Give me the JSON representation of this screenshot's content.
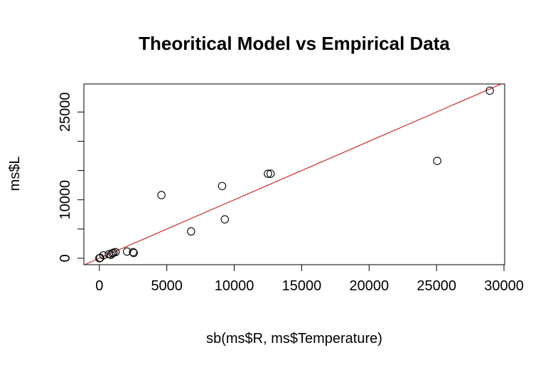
{
  "chart_data": {
    "type": "scatter",
    "title": "Theoritical Model vs Empirical Data",
    "xlabel": "sb(ms$R, ms$Temperature)",
    "ylabel": "ms$L",
    "xlim": [
      -1150,
      30050
    ],
    "ylim": [
      -1100,
      29800
    ],
    "x_ticks": [
      0,
      5000,
      10000,
      15000,
      20000,
      25000,
      30000
    ],
    "y_ticks": [
      0,
      5000,
      10000,
      15000,
      20000,
      25000
    ],
    "y_tick_labels": [
      "0",
      "",
      "10000",
      "",
      "",
      "25000"
    ],
    "grid": false,
    "legend": "none",
    "points": [
      {
        "x": 0,
        "y": 0
      },
      {
        "x": 60,
        "y": 80
      },
      {
        "x": 300,
        "y": 500
      },
      {
        "x": 700,
        "y": 700
      },
      {
        "x": 850,
        "y": 600
      },
      {
        "x": 950,
        "y": 850
      },
      {
        "x": 1050,
        "y": 950
      },
      {
        "x": 1200,
        "y": 1050
      },
      {
        "x": 2050,
        "y": 1150
      },
      {
        "x": 2500,
        "y": 1050
      },
      {
        "x": 2550,
        "y": 900
      },
      {
        "x": 4600,
        "y": 10800
      },
      {
        "x": 6800,
        "y": 4600
      },
      {
        "x": 9100,
        "y": 12350
      },
      {
        "x": 9300,
        "y": 6650
      },
      {
        "x": 12500,
        "y": 14450
      },
      {
        "x": 12700,
        "y": 14450
      },
      {
        "x": 25050,
        "y": 16650
      },
      {
        "x": 28950,
        "y": 28650
      }
    ],
    "reference_line": {
      "intercept": 0,
      "slope": 1,
      "color": "#cc0000"
    }
  }
}
